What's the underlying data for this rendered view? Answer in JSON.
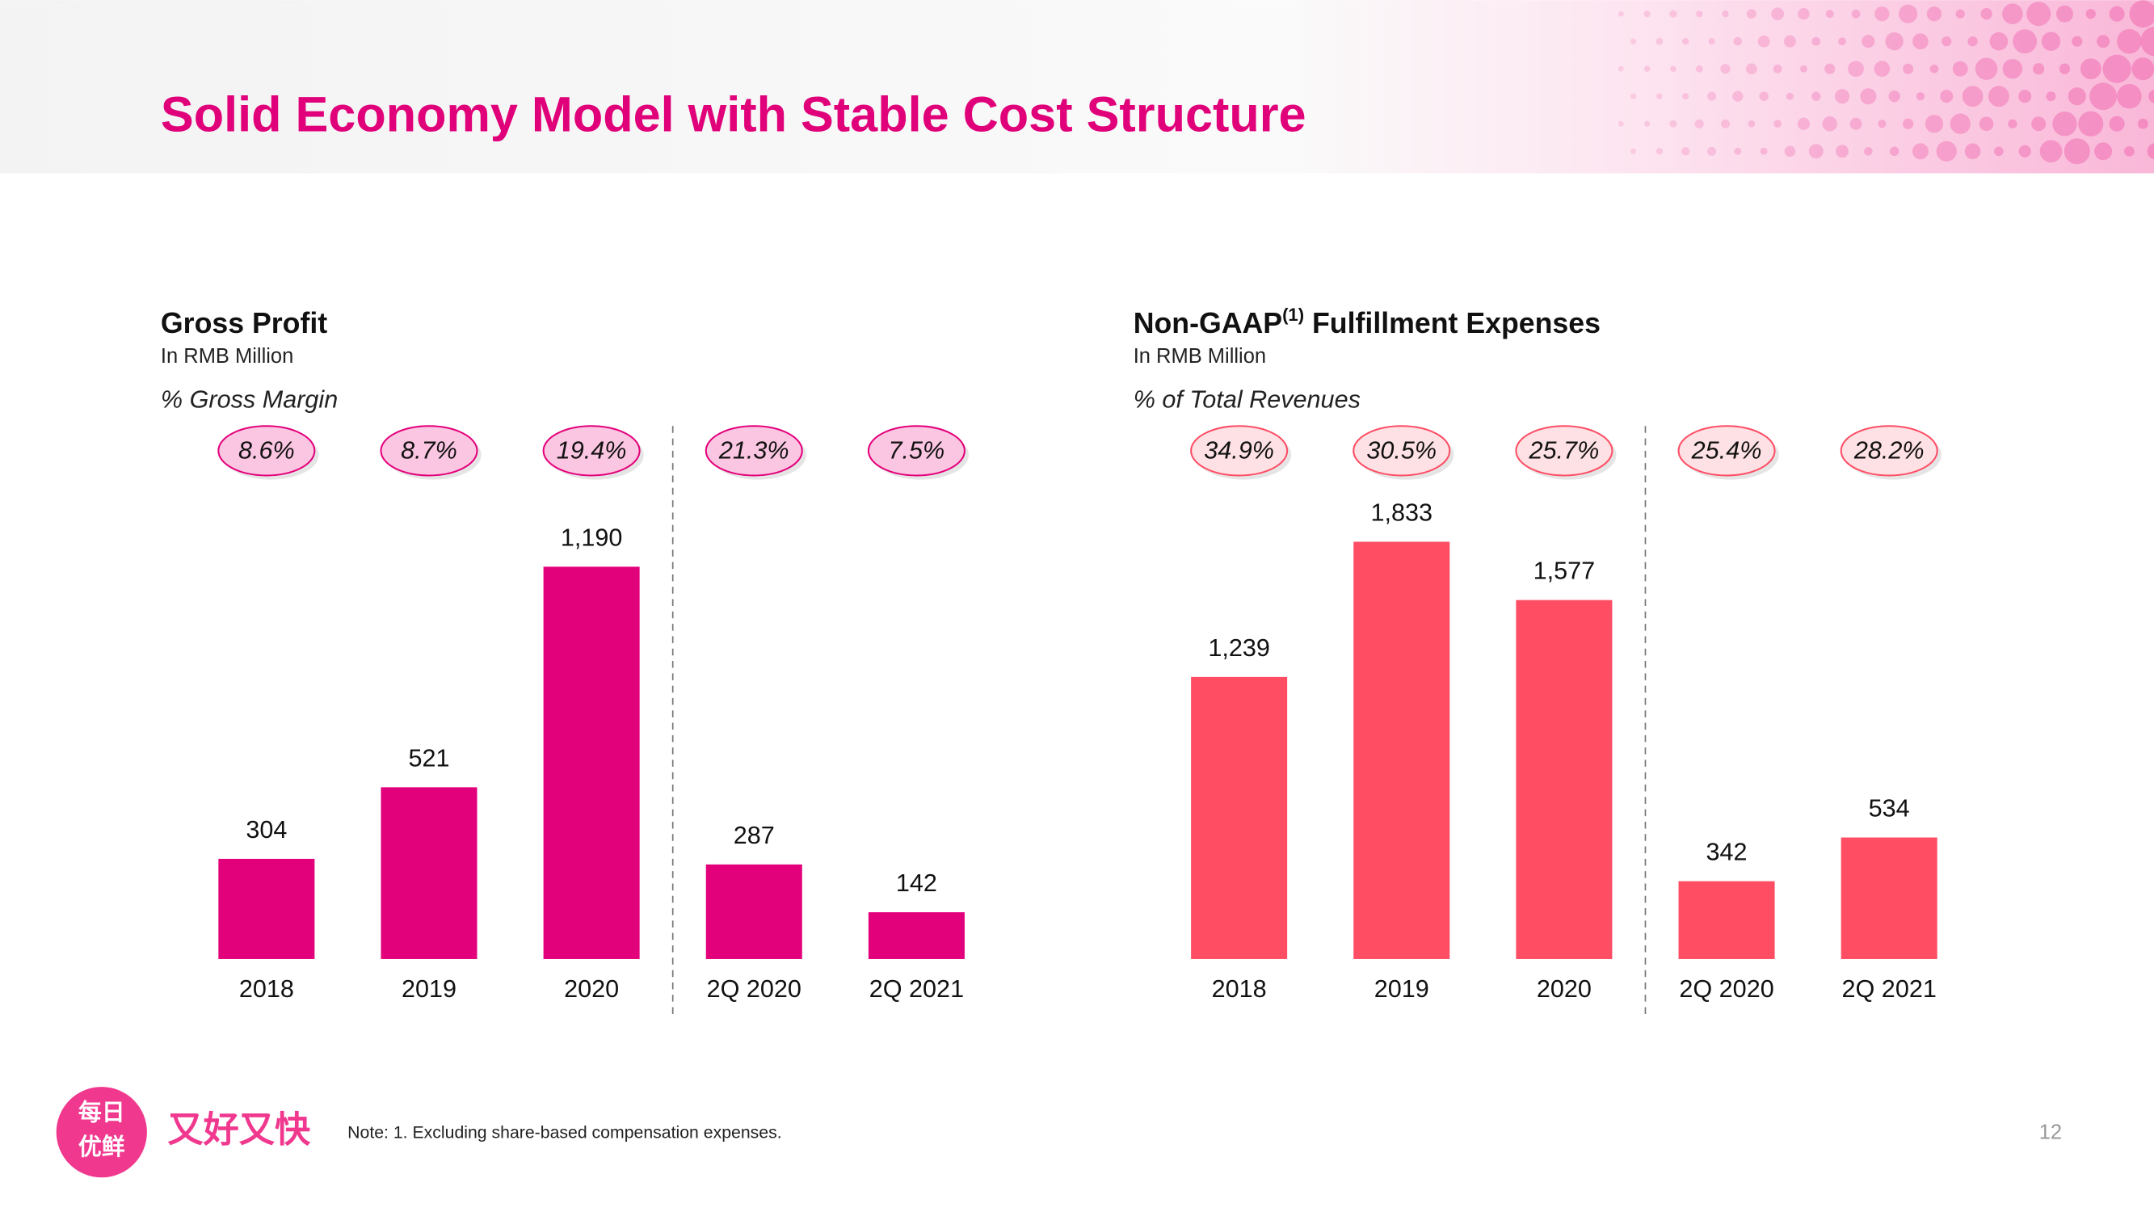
{
  "header": {
    "title": "Solid Economy Model with Stable Cost Structure"
  },
  "chart_data": [
    {
      "type": "bar",
      "title": [
        "Gross Profit"
      ],
      "subtitle": "In RMB Million",
      "ratio_title": "% Gross Margin",
      "categories": [
        "2018",
        "2019",
        "2020",
        "2Q 2020",
        "2Q 2021"
      ],
      "values": [
        304,
        521,
        1190,
        287,
        142
      ],
      "value_labels": [
        "304",
        "521",
        "1,190",
        "287",
        "142"
      ],
      "ratios": [
        8.6,
        8.7,
        19.4,
        21.3,
        7.5
      ],
      "ratio_labels": [
        "8.6%",
        "8.7%",
        "19.4%",
        "21.3%",
        "7.5%"
      ],
      "color": "#e3007b",
      "ratio_fill": "#fbc6e1",
      "ylim": [
        0,
        1450
      ],
      "separator_after": 3
    },
    {
      "type": "bar",
      "title": [
        "Non-GAAP",
        "(1)",
        " Fulfillment Expenses"
      ],
      "subtitle": "In RMB Million",
      "ratio_title": "% of Total Revenues",
      "categories": [
        "2018",
        "2019",
        "2020",
        "2Q 2020",
        "2Q 2021"
      ],
      "values": [
        1239,
        1833,
        1577,
        342,
        534
      ],
      "value_labels": [
        "1,239",
        "1,833",
        "1,577",
        "342",
        "534"
      ],
      "ratios": [
        34.9,
        30.5,
        25.7,
        25.4,
        28.2
      ],
      "ratio_labels": [
        "34.9%",
        "30.5%",
        "25.7%",
        "25.4%",
        "28.2%"
      ],
      "color": "#ff4d64",
      "ratio_fill": "#fde1e4",
      "ylim": [
        0,
        2100
      ],
      "separator_after": 3
    }
  ],
  "footer": {
    "logo_top": "每日",
    "logo_bottom": "优鲜",
    "slogan": "又好又快",
    "note": "Note: 1. Excluding share-based compensation expenses.",
    "page_number": "12"
  }
}
